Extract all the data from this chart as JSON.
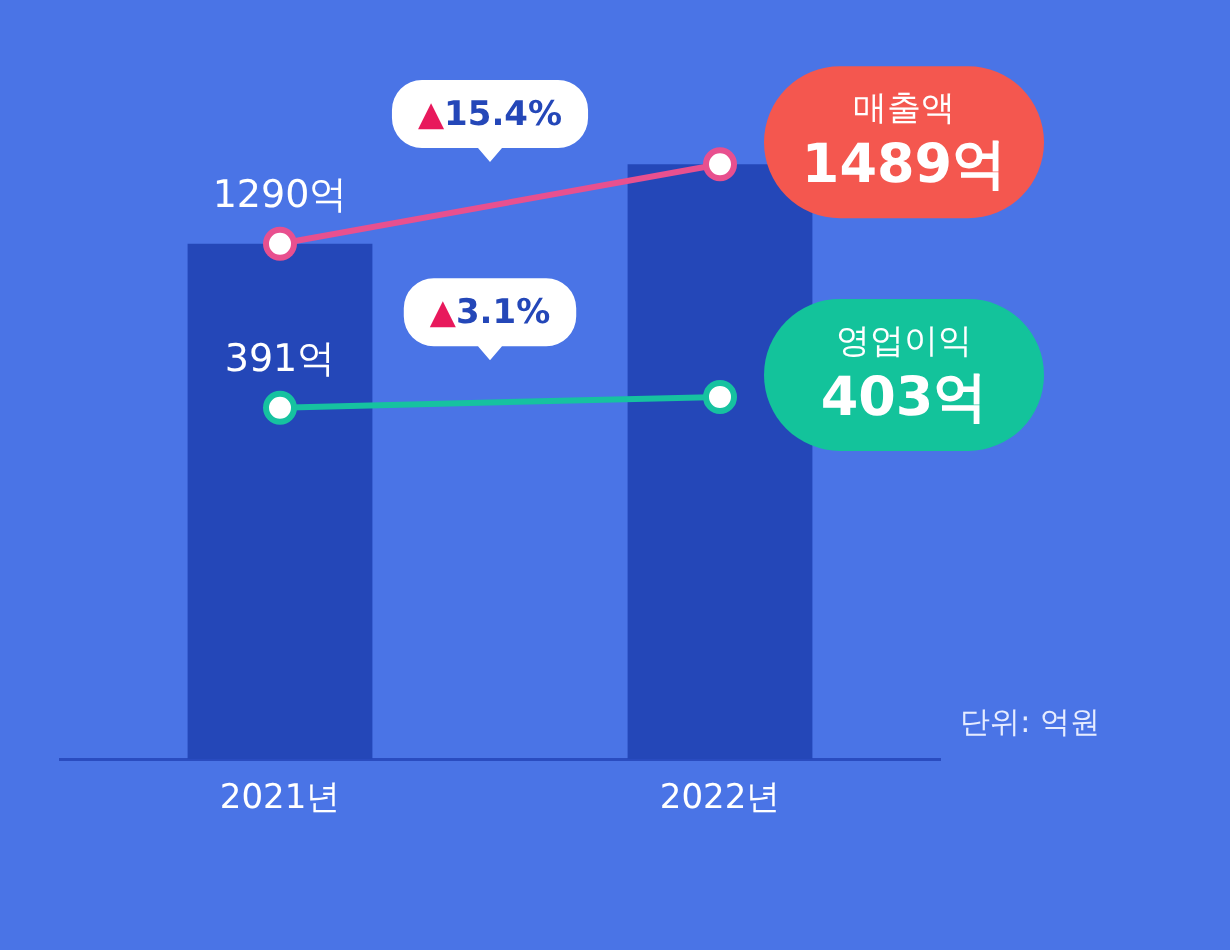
{
  "chart_data": {
    "type": "bar",
    "categories": [
      "2021년",
      "2022년"
    ],
    "series": [
      {
        "type": "bar",
        "color": "#2447b8",
        "values": [
          1290,
          1489
        ]
      },
      {
        "type": "line",
        "name": "매출액",
        "color": "#e8508f",
        "values": [
          1290,
          1489
        ],
        "value_labels": [
          "1290억",
          "1489억"
        ]
      },
      {
        "type": "line",
        "name": "영업이익",
        "axis": "y2",
        "color": "#16c2a0",
        "values": [
          391,
          403
        ],
        "value_labels": [
          "391억",
          "403억"
        ]
      }
    ],
    "tick_labels": "x",
    "grid": false,
    "legend": false,
    "marker": "circle",
    "annotations": [
      "▲15.4%",
      "▲3.1%",
      "단위: 억원"
    ]
  }
}
